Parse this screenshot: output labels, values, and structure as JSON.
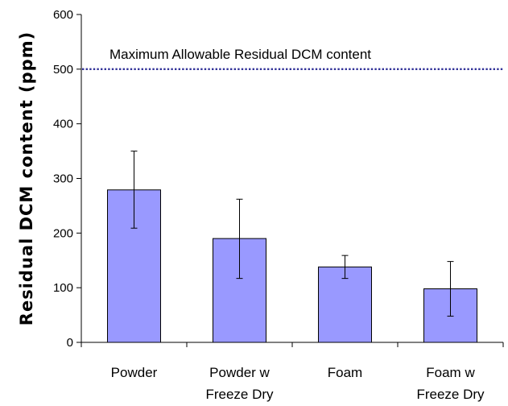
{
  "chart_data": {
    "type": "bar",
    "categories": [
      [
        "Powder"
      ],
      [
        "Powder w",
        "Freeze Dry"
      ],
      [
        "Foam"
      ],
      [
        "Foam w",
        "Freeze Dry"
      ]
    ],
    "values": [
      279,
      190,
      138,
      98
    ],
    "error_low": [
      209,
      117,
      117,
      48
    ],
    "error_high": [
      350,
      262,
      159,
      148
    ],
    "title": "",
    "xlabel": "",
    "ylabel": "Residual DCM content (ppm)",
    "ylim": [
      0,
      600
    ],
    "yticks": [
      0,
      100,
      200,
      300,
      400,
      500,
      600
    ],
    "grid": false,
    "legend": "none",
    "bar_color": "#9999ff",
    "bar_edge_color": "#000000",
    "reference_line": {
      "value": 500,
      "label": "Maximum Allowable Residual DCM content",
      "color": "#333399",
      "style": "dotted"
    }
  }
}
